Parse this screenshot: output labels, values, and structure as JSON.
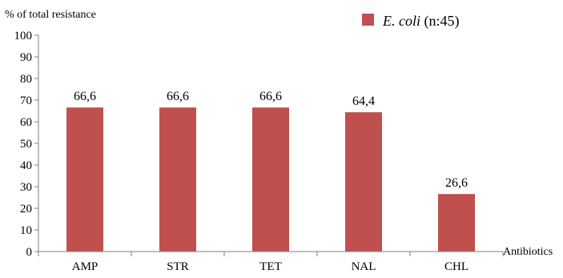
{
  "chart_data": {
    "type": "bar",
    "categories": [
      "AMP",
      "STR",
      "TET",
      "NAL",
      "CHL"
    ],
    "series": [
      {
        "name": "E. coli (n:45)",
        "values": [
          66.6,
          66.6,
          66.6,
          64.4,
          26.6
        ]
      }
    ],
    "data_labels": [
      "66,6",
      "66,6",
      "66,6",
      "64,4",
      "26,6"
    ],
    "ylabel": "% of total resistance",
    "xlabel": "Antibiotics",
    "ylim": [
      0,
      100
    ],
    "yticks": [
      0,
      10,
      20,
      30,
      40,
      50,
      60,
      70,
      80,
      90,
      100
    ],
    "grid": false,
    "legend": {
      "position": "top-right",
      "label_italic": "E. coli",
      "label_rest": " (n:45)"
    },
    "colors": {
      "bar": "#c0504d",
      "axis": "#7f7f7f"
    }
  }
}
